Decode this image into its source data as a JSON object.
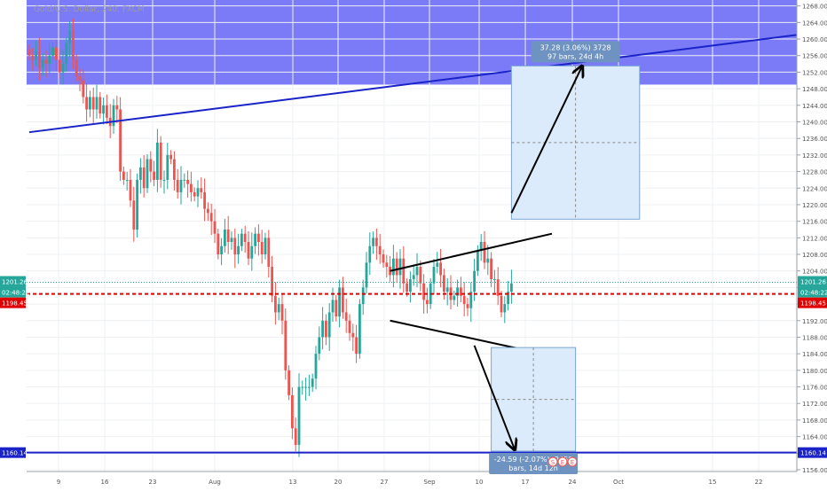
{
  "header": {
    "symbol_text": "Gold/U.S. Dollar, 240, FXCM"
  },
  "colors": {
    "up_candle": "#26a69a",
    "down_candle": "#ef5350",
    "zone_fill": "#7b7bf7",
    "trend_line": "#1a23c8",
    "support_line": "#1a23c8",
    "dotted_price_line": "#e00000",
    "current_price_line": "#26a69a",
    "box_fill": "#dcebfb",
    "box_border": "#7aa6d6",
    "arrow": "#000000",
    "tag_bg": "#6f93c0"
  },
  "chart_data": {
    "type": "candlestick",
    "ylim": [
      1156,
      1269
    ],
    "y_ticks": [
      "1268.00",
      "1264.00",
      "1260.00",
      "1256.00",
      "1252.00",
      "1248.00",
      "1244.00",
      "1240.00",
      "1236.00",
      "1232.00",
      "1228.00",
      "1224.00",
      "1220.00",
      "1216.00",
      "1212.00",
      "1208.00",
      "1204.00",
      "1200.00",
      "1196.00",
      "1192.00",
      "1188.00",
      "1184.00",
      "1180.00",
      "1176.00",
      "1172.00",
      "1168.00",
      "1164.00",
      "1160.00",
      "1156.00"
    ],
    "x_ticks": [
      "9",
      "16",
      "23",
      "Aug",
      "13",
      "20",
      "27",
      "Sep",
      "10",
      "17",
      "24",
      "Oct",
      "15",
      "22"
    ],
    "price_labels": {
      "current_price": "1201.26",
      "countdown": "02:48:22",
      "dotted_level": "1198.45",
      "support_level": "1160.14"
    },
    "levels": {
      "current_price": 1201.26,
      "dotted_level": 1198.45,
      "support_level": 1160.14,
      "zone_top": 1269,
      "zone_bottom": 1249
    },
    "closes": [
      1256,
      1255,
      1257,
      1253,
      1255,
      1254,
      1256,
      1258,
      1255,
      1252,
      1254,
      1259,
      1262,
      1255,
      1251,
      1250,
      1246,
      1243,
      1246,
      1243,
      1246,
      1242,
      1244,
      1241,
      1239,
      1244,
      1243,
      1228,
      1226,
      1226,
      1221,
      1214,
      1226,
      1229,
      1224,
      1231,
      1228,
      1226,
      1235,
      1226,
      1226,
      1232,
      1231,
      1226,
      1223,
      1226,
      1226,
      1225,
      1223,
      1222,
      1224,
      1223,
      1219,
      1218,
      1216,
      1213,
      1208,
      1210,
      1214,
      1211,
      1212,
      1208,
      1210,
      1213,
      1211,
      1207,
      1210,
      1213,
      1211,
      1208,
      1212,
      1205,
      1198,
      1194,
      1196,
      1192,
      1180,
      1174,
      1166,
      1162,
      1176,
      1176,
      1176,
      1176,
      1178,
      1184,
      1188,
      1192,
      1188,
      1194,
      1197,
      1193,
      1200,
      1194,
      1192,
      1189,
      1188,
      1184,
      1196,
      1200,
      1206,
      1210,
      1212,
      1210,
      1208,
      1206,
      1205,
      1203,
      1207,
      1203,
      1207,
      1201,
      1199,
      1202,
      1203,
      1205,
      1201,
      1197,
      1196,
      1201,
      1205,
      1206,
      1203,
      1199,
      1200,
      1197,
      1198,
      1200,
      1198,
      1196,
      1195,
      1199,
      1204,
      1209,
      1211,
      1206,
      1207,
      1202,
      1202,
      1198,
      1194,
      1196,
      1199,
      1201
    ],
    "trendline": {
      "start": {
        "bar": 0,
        "price": 1237.5
      },
      "end": {
        "bar": 212,
        "price": 1261
      }
    },
    "triangle": {
      "upper": {
        "start": {
          "bar": 107,
          "price": 1204
        },
        "end": {
          "bar": 155,
          "price": 1213
        }
      },
      "lower": {
        "start": {
          "bar": 107,
          "price": 1192
        },
        "end": {
          "bar": 155,
          "price": 1183.5
        }
      }
    },
    "long_projection": {
      "label_line1": "37.28 (3.06%) 3728",
      "label_line2": "97 bars, 24d 4h",
      "box": {
        "bar_start": 143,
        "bar_end": 181,
        "price_top": 1253.5,
        "price_bottom": 1216.5
      },
      "arrow": {
        "from": {
          "bar": 143,
          "price": 1218
        },
        "to": {
          "bar": 164,
          "price": 1253.5
        }
      }
    },
    "short_projection": {
      "label_line1": "-24.59 (-2.07%) -2459",
      "label_line2": "bars, 14d 12h",
      "box": {
        "bar_start": 137,
        "bar_end": 162,
        "price_top": 1185.5,
        "price_bottom": 1160.5
      },
      "arrow": {
        "from": {
          "bar": 132,
          "price": 1186
        },
        "to": {
          "bar": 144,
          "price": 1160.8
        }
      }
    },
    "events_text": "S E E"
  }
}
